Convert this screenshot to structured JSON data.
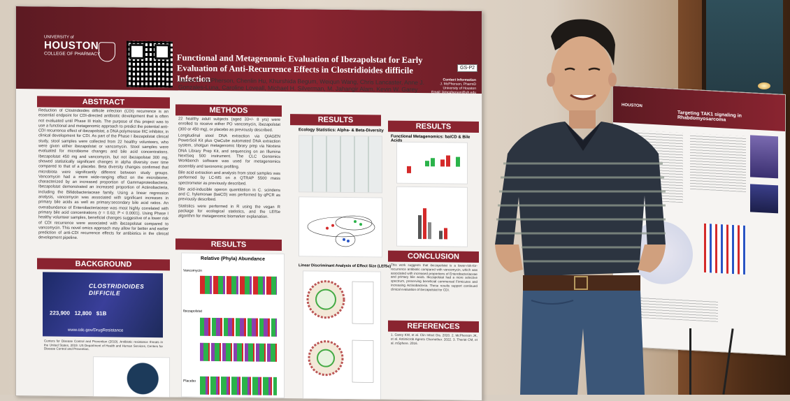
{
  "poster": {
    "university": "UNIVERSITY of",
    "university_name": "HOUSTON",
    "college": "COLLEGE OF PHARMACY",
    "title": "Functional and Metagenomic Evaluation of Ibezapolstat for Early Evaluation of Anti-Recurrence Effects in Clostridioides difficile Infection",
    "authors": "Jacob K. McPherson, Chenlin Hu, Khurshida Begum, Weiqun Wang, Chris Lancaster, Anne J. Gonzales-Luna, Caroline Loveall, Michael H. Silverman, M. Jahangir Alam, Kevin W. Garey",
    "contact_heading": "Contact Information",
    "contact_name": "J. McPherson, PharmD",
    "contact_org": "University of Houston",
    "contact_email": "Email: jkmcpherson@uh.edu",
    "board_tag": "GS-P2",
    "sections": {
      "abstract": "ABSTRACT",
      "methods": "METHODS",
      "results1": "RESULTS",
      "results2": "RESULTS",
      "background": "BACKGROUND",
      "results_left": "RESULTS",
      "conclusion": "CONCLUSION",
      "references": "REFERENCES"
    },
    "abstract_text": "Reduction of Clostridioides difficile infection (CDI) recurrence is an essential endpoint for CDI-directed antibiotic development that is often not evaluated until Phase III trials. The purpose of this project was to use a functional and metagenomic approach to predict the potential anti-CDI recurrence effect of ibezapolstat, a DNA polymerase IIIC inhibitor, in clinical development for CDI. As part of the Phase I ibezapolstat clinical study, stool samples were collected from 22 healthy volunteers, who were given either ibezapolstat or vancomycin. Stool samples were evaluated for microbiome changes and bile acid concentrations. Ibezapolstat 450 mg and vancomycin, but not ibezapolstat 300 mg, showed statistically significant changes in alpha diversity over time compared to that of a placebo. Beta diversity changes confirmed that microbiota were significantly different between study groups. Vancomycin had a more wide-ranging effect on the microbiome, characterized by an increased proportion of Gammaproteobacteria. Ibezapolstat demonstrated an increased proportion of Actinobacteria, including the Bifidobacteriaceae family. Using a linear regression analysis, vancomycin was associated with significant increases in primary bile acids as well as primary:secondary bile acid ratios. An overabundance of Enterobacteriaceae was most highly correlated with primary bile acid concentrations (r = 0.63; P < 0.0001). Using Phase I healthy volunteer samples, beneficial changes suggestive of a lower risk of CDI recurrence were associated with ibezapolstat compared to vancomycin. This novel omics approach may allow for better and earlier prediction of anti-CDI recurrence effects for antibiotics in the clinical development pipeline.",
    "methods_items": [
      "22 healthy adult subjects (aged 33+/- 8 yrs) were enrolled to receive either PO vancomycin, ibezapolstat (300 or 450 mg), or placebo as previously described.",
      "Longitudinal stool DNA extraction via QIAGEN PowerSoil Kit plus QiaCube automated DNA extraction system, shotgun metagenomic library prep via Nextera DNA Library Prep Kit, and sequencing on an Illumina NextSeq 500 instrument. The CLC Genomics Workbench software was used for metagenomics assembly and taxonomic profiling.",
      "Bile acid extraction and analysis from stool samples was performed by LC-MS on a QTRAP 5500 mass spectrometer as previously described.",
      "Bile acid-inducible operon quantitation in C. scindens and C. hylemonae (baiCD) was performed by qPCR as previously described.",
      "Statistics were performed in R using the vegan R package for ecological statistics, and the LEfSe algorithm for metagenomic biomarker explanation."
    ],
    "ecology_title": "Ecology Statistics: Alpha- & Beta-Diversity",
    "functional_title": "Functional Metagenomics: baiCD & Bile Acids",
    "lefse_title": "Linear Discriminant Analysis of Effect Size (LEfSe)",
    "phyla_title": "Relative (Phyla) Abundance",
    "phyla_groups": [
      "Vancomycin",
      "Ibezapolstat",
      "Placebo"
    ],
    "background_banner": {
      "title": "CLOSTRIDIOIDES DIFFICILE",
      "stat1": "223,900",
      "stat2": "12,800",
      "stat3": "$1B",
      "url": "www.cdc.gov/DrugResistance"
    },
    "background_caption": "Centers for Disease Control and Prevention (2019). Antibiotic resistance threats in the United States, 2019. US Department of Health and Human Services, Centers for Disease Control and Prevention.",
    "conclusion_text": "This work suggests that ibezapolstat is a lower-risk-for-recurrence antibiotic compared with vancomycin, which was associated with increased proportions of Enterobacteriaceae and primary bile acids. Ibezapolstat had a more selective spectrum, preserving beneficial commensal Firmicutes and increasing Actinobacteria. These results support continued clinical evaluation of ibezapolstat for CDI.",
    "references_text": "1. Garey KW, et al. Clin Infect Dis. 2020. 2. McPherson JK, et al. Antimicrob Agents Chemother. 2022. 3. Theriot CM, et al. mSphere. 2016."
  },
  "poster2": {
    "logo": "HOUSTON",
    "title": "Targeting TAK1 signaling in Rhabdomyosarcoma"
  },
  "colors": {
    "header": "#8a2430",
    "header_dark": "#5c1a22",
    "shirt": "#2c3440",
    "jeans": "#3b5678"
  }
}
